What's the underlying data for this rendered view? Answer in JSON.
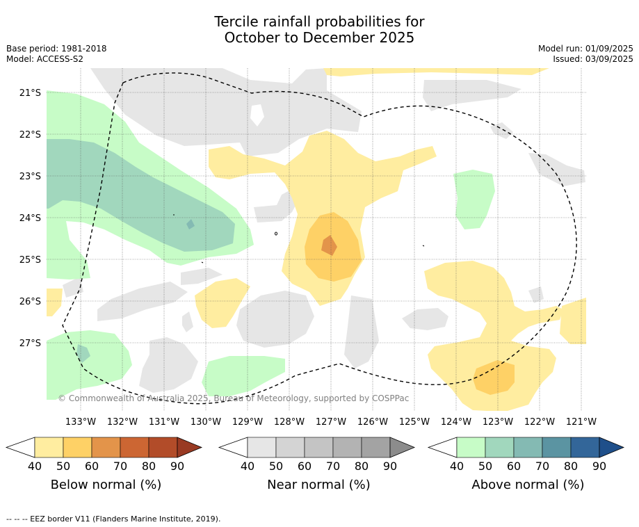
{
  "header": {
    "title_line1": "Tercile rainfall probabilities for",
    "title_line2": "October to December 2025",
    "base_period": "Base period: 1981-2018",
    "model": "Model: ACCESS-S2",
    "model_run": "Model run: 01/09/2025",
    "issued": "Issued: 03/09/2025"
  },
  "map": {
    "lat_labels": [
      "21°S",
      "22°S",
      "23°S",
      "24°S",
      "25°S",
      "26°S",
      "27°S"
    ],
    "lon_labels": [
      "133°W",
      "132°W",
      "131°W",
      "130°W",
      "129°W",
      "128°W",
      "127°W",
      "126°W",
      "125°W",
      "124°W",
      "123°W",
      "122°W",
      "121°W"
    ],
    "copyright": "© Commonwealth of Australia 2025, Bureau of Meteorology, supported by COSPPac",
    "colors": {
      "below_40": "#ffeda0",
      "below_50": "#fed166",
      "below_60": "#e3944a",
      "near_40": "#e6e6e6",
      "above_40": "#c7fcc7",
      "above_50": "#a1d7bd",
      "above_60": "#84bab3"
    }
  },
  "colorbars": [
    {
      "title": "Below normal (%)",
      "ticks": [
        "40",
        "50",
        "60",
        "70",
        "80",
        "90"
      ],
      "colors": [
        "#ffeda0",
        "#fed166",
        "#e3944a",
        "#cc6633",
        "#b24c29",
        "#993a23"
      ]
    },
    {
      "title": "Near normal (%)",
      "ticks": [
        "40",
        "50",
        "60",
        "70",
        "80",
        "90"
      ],
      "colors": [
        "#e6e6e6",
        "#d4d4d4",
        "#c4c4c4",
        "#b3b3b3",
        "#a3a3a3",
        "#8c8c8c"
      ]
    },
    {
      "title": "Above normal (%)",
      "ticks": [
        "40",
        "50",
        "60",
        "70",
        "80",
        "90"
      ],
      "colors": [
        "#c7fcc7",
        "#a1d7bd",
        "#84bab3",
        "#5b94a2",
        "#336699",
        "#1f4f8a"
      ]
    }
  ],
  "footer": {
    "legend": "--  --  -- EEZ border V11 (Flanders Marine Institute, 2019)."
  }
}
